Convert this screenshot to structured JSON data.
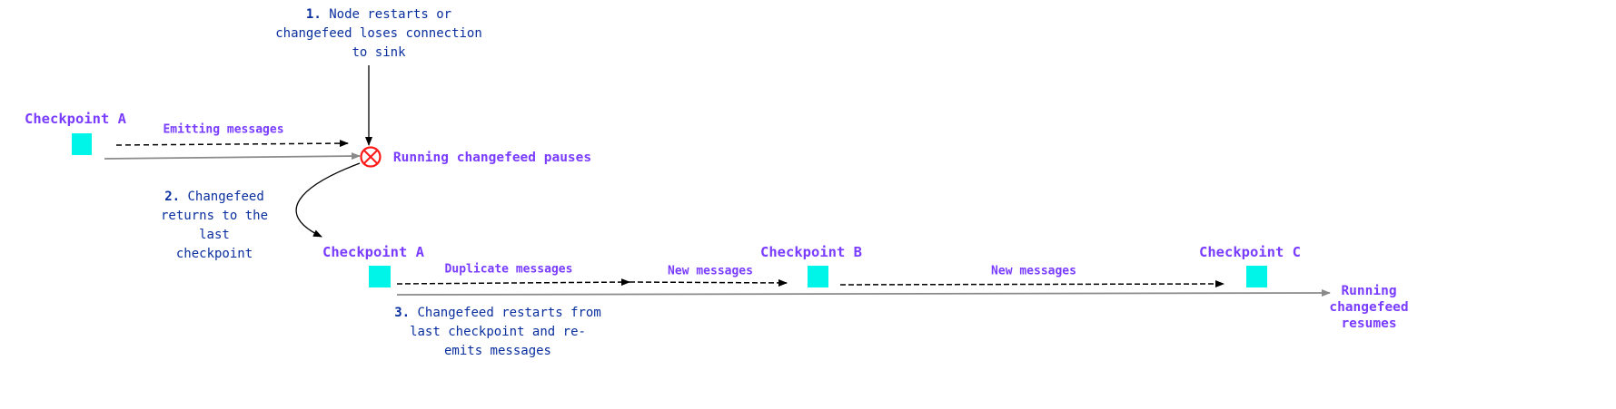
{
  "colors": {
    "label": "#7a3cff",
    "note": "#0a2f9e",
    "checkpoint": "#00f5e9",
    "error": "#ff1a1a",
    "timeline": "#8a8a8a",
    "arrow": "#000000"
  },
  "notes": {
    "step1": {
      "number": "1.",
      "text": "Node restarts or\nchangefeed loses connection\nto sink"
    },
    "step2": {
      "number": "2.",
      "text": "Changefeed\nreturns to the\nlast\ncheckpoint"
    },
    "step3": {
      "number": "3.",
      "text": "Changefeed restarts from\nlast checkpoint and re-\nemits messages"
    }
  },
  "first_run": {
    "checkpoint": "Checkpoint A",
    "message_label": "Emitting messages",
    "state": "Running changefeed pauses",
    "error_icon": "circle-x-icon"
  },
  "second_run": {
    "checkpoints": [
      "Checkpoint A",
      "Checkpoint B",
      "Checkpoint C"
    ],
    "message_labels": [
      "Duplicate messages",
      "New messages",
      "New messages"
    ],
    "state": "Running\nchangefeed\nresumes"
  }
}
